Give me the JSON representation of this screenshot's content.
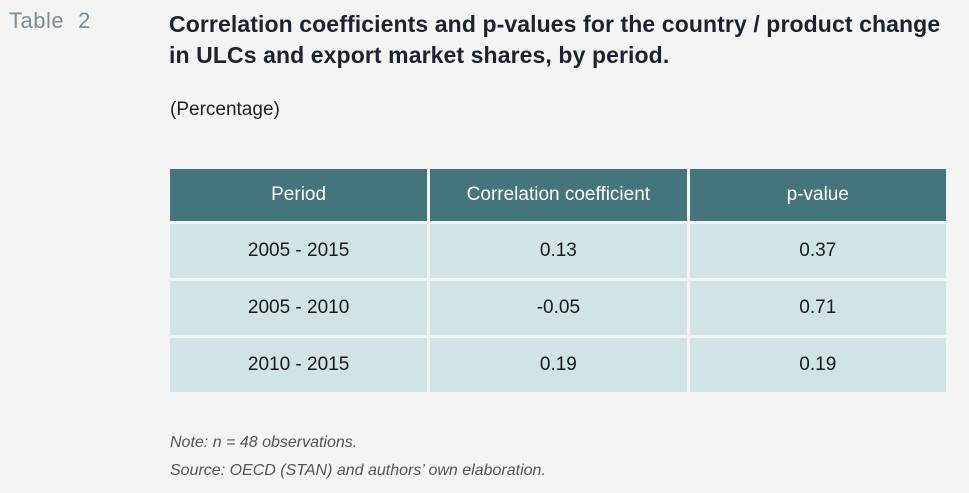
{
  "label": {
    "word": "Table",
    "number": "2"
  },
  "title": "Correlation coefficients and p-values for the country / product change in ULCs and export market shares, by period.",
  "subtitle": "(Percentage)",
  "table": {
    "headers": [
      "Period",
      "Correlation coefficient",
      "p-value"
    ],
    "rows": [
      [
        "2005 - 2015",
        "0.13",
        "0.37"
      ],
      [
        "2005 - 2010",
        "-0.05",
        "0.71"
      ],
      [
        "2010 - 2015",
        "0.19",
        "0.19"
      ]
    ]
  },
  "notes": {
    "note": "Note: n = 48 observations.",
    "source": "Source: OECD (STAN) and authors’ own elaboration."
  },
  "colors": {
    "header_bg": "#45757c",
    "row_bg": "#d1e4e5",
    "label_color": "#7a8e99"
  }
}
